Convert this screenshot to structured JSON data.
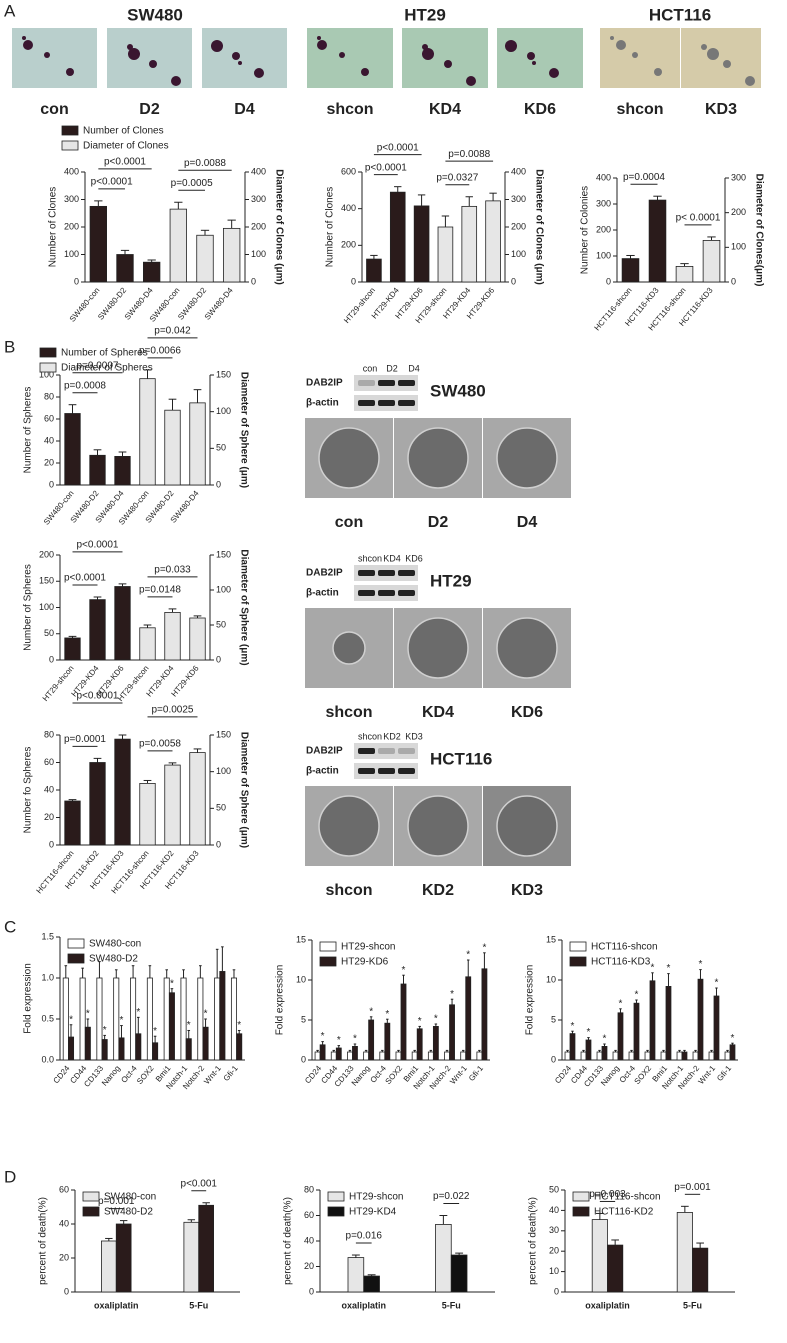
{
  "panel_labels": [
    "A",
    "B",
    "C",
    "D"
  ],
  "panel_a": {
    "groups": [
      {
        "title": "SW480",
        "images": [
          "con",
          "D2",
          "D4"
        ]
      },
      {
        "title": "HT29",
        "images": [
          "shcon",
          "KD4",
          "KD6"
        ]
      },
      {
        "title": "HCT116",
        "images": [
          "shcon",
          "KD3"
        ]
      }
    ]
  },
  "panel_b": {
    "blots": [
      {
        "cell_line": "SW480",
        "lanes": [
          "con",
          "D2",
          "D4"
        ],
        "proteins": [
          "DAB2IP",
          "β-actin"
        ],
        "images": [
          "con",
          "D2",
          "D4"
        ]
      },
      {
        "cell_line": "HT29",
        "lanes": [
          "shcon",
          "KD4",
          "KD6"
        ],
        "proteins": [
          "DAB2IP",
          "β-actin"
        ],
        "images": [
          "shcon",
          "KD4",
          "KD6"
        ]
      },
      {
        "cell_line": "HCT116",
        "lanes": [
          "shcon",
          "KD2",
          "KD3"
        ],
        "proteins": [
          "DAB2IP",
          "β-actin"
        ],
        "images": [
          "shcon",
          "KD2",
          "KD3"
        ]
      }
    ]
  },
  "chart_data": [
    {
      "type": "bar",
      "ylabel": "Number of Clones",
      "y2label": "Diameter of Clones (μm)",
      "legend": "upper left",
      "categories": [
        "SW480-con",
        "SW480-D2",
        "SW480-D4",
        "SW480-con",
        "SW480-D2",
        "SW480-D4"
      ],
      "ylim": [
        0,
        400
      ],
      "yticks": [
        0,
        100,
        200,
        300,
        400
      ],
      "y2lim": [
        0,
        400
      ],
      "y2ticks": [
        0,
        100,
        200,
        300,
        400
      ],
      "series": [
        {
          "name": "Number of Clones",
          "color": "#2a1b1b",
          "values": [
            275,
            100,
            72,
            null,
            null,
            null
          ],
          "errors": [
            20,
            15,
            8,
            null,
            null,
            null
          ]
        },
        {
          "name": "Diameter of Clones",
          "color": "#e6e6e6",
          "axis": "y2",
          "values": [
            null,
            null,
            null,
            265,
            170,
            195
          ],
          "errors": [
            null,
            null,
            null,
            25,
            18,
            30
          ]
        }
      ],
      "annotations": [
        "p<0.0001",
        "p<0.0001",
        "p=0.0088",
        "p=0.0005"
      ]
    },
    {
      "type": "bar",
      "ylabel": "Number of Clones",
      "y2label": "Diameter of Clones (μm)",
      "categories": [
        "HT29-shcon",
        "HT29-KD4",
        "HT29-KD6",
        "HT29-shcon",
        "HT29-KD4",
        "HT29-KD6"
      ],
      "ylim": [
        0,
        600
      ],
      "yticks": [
        0,
        200,
        400,
        600
      ],
      "y2lim": [
        0,
        400
      ],
      "y2ticks": [
        0,
        100,
        200,
        300,
        400
      ],
      "series": [
        {
          "color": "#2a1b1b",
          "values": [
            125,
            490,
            415,
            null,
            null,
            null
          ],
          "errors": [
            20,
            30,
            60,
            null,
            null,
            null
          ]
        },
        {
          "color": "#e6e6e6",
          "axis": "y2",
          "values": [
            null,
            null,
            null,
            200,
            275,
            295
          ],
          "errors": [
            null,
            null,
            null,
            40,
            35,
            28
          ]
        }
      ],
      "annotations": [
        "p<0.0001",
        "p<0.0001",
        "p=0.0088",
        "p=0.0327"
      ]
    },
    {
      "type": "bar",
      "ylabel": "Number of Colonies",
      "y2label": "Diameter of Clones(μm)",
      "categories": [
        "HCT116-shcon",
        "HCT116-KD3",
        "HCT116-shcon",
        "HCT116-KD3"
      ],
      "ylim": [
        0,
        400
      ],
      "yticks": [
        0,
        100,
        200,
        300,
        400
      ],
      "y2lim": [
        0,
        300
      ],
      "y2ticks": [
        0,
        100,
        200,
        300
      ],
      "series": [
        {
          "color": "#2a1b1b",
          "values": [
            90,
            315,
            null,
            null
          ],
          "errors": [
            12,
            15,
            null,
            null
          ]
        },
        {
          "color": "#e6e6e6",
          "axis": "y2",
          "values": [
            null,
            null,
            45,
            120
          ],
          "errors": [
            null,
            null,
            8,
            10
          ]
        }
      ],
      "annotations": [
        "p=0.0004",
        "p< 0.0001"
      ]
    },
    {
      "type": "bar",
      "ylabel": "Number of Spheres",
      "y2label": "Diameter of Sphere (μm)",
      "legend": "upper left",
      "categories": [
        "SW480-con",
        "SW480-D2",
        "SW480-D4",
        "SW480-con",
        "SW480-D2",
        "SW480-D4"
      ],
      "ylim": [
        0,
        100
      ],
      "yticks": [
        0,
        20,
        40,
        60,
        80,
        100
      ],
      "y2lim": [
        0,
        150
      ],
      "y2ticks": [
        0,
        50,
        100,
        150
      ],
      "series": [
        {
          "name": "Number of Spheres",
          "color": "#2a1b1b",
          "values": [
            65,
            27,
            26,
            null,
            null,
            null
          ],
          "errors": [
            8,
            5,
            4,
            null,
            null,
            null
          ]
        },
        {
          "name": "Diameter of Spheres",
          "color": "#e6e6e6",
          "axis": "y2",
          "values": [
            null,
            null,
            null,
            145,
            102,
            112
          ],
          "errors": [
            null,
            null,
            null,
            12,
            15,
            18
          ]
        }
      ],
      "annotations": [
        "p=0.0007",
        "p=0.0008",
        "p=0.042",
        "p=0.0066"
      ]
    },
    {
      "type": "bar",
      "ylabel": "Number of Spheres",
      "y2label": "Diameter of Sphere (μm)",
      "categories": [
        "HT29-shcon",
        "HT29-KD4",
        "HT29-KD6",
        "HT29-shcon",
        "HT29-KD4",
        "HT29-KD6"
      ],
      "ylim": [
        0,
        200
      ],
      "yticks": [
        0,
        50,
        100,
        150,
        200
      ],
      "y2lim": [
        0,
        150
      ],
      "y2ticks": [
        0,
        50,
        100,
        150
      ],
      "series": [
        {
          "color": "#2a1b1b",
          "values": [
            42,
            115,
            140,
            null,
            null,
            null
          ],
          "errors": [
            3,
            5,
            5,
            null,
            null,
            null
          ]
        },
        {
          "color": "#e6e6e6",
          "axis": "y2",
          "values": [
            null,
            null,
            null,
            46,
            68,
            60
          ],
          "errors": [
            null,
            null,
            null,
            4,
            5,
            3
          ]
        }
      ],
      "annotations": [
        "p<0.0001",
        "p<0.0001",
        "p=0.033",
        "p=0.0148"
      ]
    },
    {
      "type": "bar",
      "ylabel": "Number fo Spheres",
      "y2label": "Diameter of Sphere (μm)",
      "categories": [
        "HCT116-shcon",
        "HCT116-KD2",
        "HCT116-KD3",
        "HCT116-shcon",
        "HCT116-KD2",
        "HCT116-KD3"
      ],
      "ylim": [
        0,
        80
      ],
      "yticks": [
        0,
        20,
        40,
        60,
        80
      ],
      "y2lim": [
        0,
        150
      ],
      "y2ticks": [
        0,
        50,
        100,
        150
      ],
      "series": [
        {
          "color": "#2a1b1b",
          "values": [
            32,
            60,
            77,
            null,
            null,
            null
          ],
          "errors": [
            1,
            3,
            3,
            null,
            null,
            null
          ]
        },
        {
          "color": "#e6e6e6",
          "axis": "y2",
          "values": [
            null,
            null,
            null,
            84,
            109,
            126
          ],
          "errors": [
            null,
            null,
            null,
            4,
            3,
            5
          ]
        }
      ],
      "annotations": [
        "p<0.0001",
        "p=0.0001",
        "p=0.0025",
        "p=0.0058"
      ]
    },
    {
      "type": "bar",
      "ylabel": "Fold expression",
      "legend": "upper left",
      "categories": [
        "CD24",
        "CD44",
        "CD133",
        "Nanog",
        "Oct-4",
        "SOX2",
        "Bmi1",
        "Notch-1",
        "Notch-2",
        "Wnt-1",
        "Gfi-1"
      ],
      "ylim": [
        0,
        1.5
      ],
      "yticks": [
        {
          "value": 0,
          "label": "0.0"
        },
        0.5,
        {
          "value": 1,
          "label": "1.0"
        },
        1.5
      ],
      "series": [
        {
          "name": "SW480-con",
          "color": "#ffffff",
          "values": [
            1,
            1,
            1,
            1,
            1,
            1,
            1,
            1,
            1,
            1,
            1
          ],
          "errors": [
            0.15,
            0.12,
            0.2,
            0.1,
            0.15,
            0.15,
            0.1,
            0.1,
            0.15,
            0.35,
            0.1
          ]
        },
        {
          "name": "SW480-D2",
          "color": "#2a1b1b",
          "values": [
            0.28,
            0.4,
            0.25,
            0.27,
            0.32,
            0.21,
            0.82,
            0.26,
            0.4,
            1.08,
            0.32
          ],
          "errors": [
            0.15,
            0.1,
            0.05,
            0.15,
            0.2,
            0.08,
            0.05,
            0.1,
            0.1,
            0.3,
            0.04
          ],
          "significance": [
            "*",
            "*",
            "*",
            "*",
            "*",
            "*",
            "*",
            "*",
            "*",
            null,
            "*"
          ]
        }
      ]
    },
    {
      "type": "bar",
      "ylabel": "Fold expression",
      "legend": "upper left",
      "categories": [
        "CD24",
        "CD44",
        "CD133",
        "Nanog",
        "Oct-4",
        "SOX2",
        "Bmi1",
        "Notch-1",
        "Notch-2",
        "Wnt-1",
        "Gfi-1"
      ],
      "ylim": [
        0,
        15
      ],
      "yticks": [
        0,
        5,
        10,
        15
      ],
      "series": [
        {
          "name": "HT29-shcon",
          "color": "#ffffff",
          "values": [
            1,
            1,
            1,
            1,
            1,
            1,
            1,
            1,
            1,
            1,
            1
          ],
          "errors": [
            0.2,
            0.2,
            0.2,
            0.2,
            0.2,
            0.2,
            0.2,
            0.2,
            0.2,
            0.2,
            0.2
          ]
        },
        {
          "name": "HT29-KD6",
          "color": "#2a1b1b",
          "values": [
            1.9,
            1.5,
            1.7,
            5,
            4.6,
            9.5,
            3.9,
            4.2,
            6.9,
            10.4,
            11.4
          ],
          "errors": [
            0.4,
            0.3,
            0.3,
            0.4,
            0.5,
            1.1,
            0.3,
            0.3,
            0.7,
            2.1,
            2
          ],
          "significance": [
            "*",
            "*",
            "*",
            "*",
            "*",
            "*",
            "*",
            "*",
            "*",
            "*",
            "*"
          ]
        }
      ]
    },
    {
      "type": "bar",
      "ylabel": "Fold expression",
      "legend": "upper left",
      "categories": [
        "CD24",
        "CD44",
        "CD133",
        "Nanog",
        "Oct-4",
        "SOX2",
        "Bmi1",
        "Notch-1",
        "Notch-2",
        "Wnt-1",
        "Gfi-1"
      ],
      "ylim": [
        0,
        15
      ],
      "yticks": [
        0,
        5,
        10,
        15
      ],
      "series": [
        {
          "name": "HCT116-shcon",
          "color": "#ffffff",
          "values": [
            1,
            1,
            1,
            1,
            1,
            1,
            1,
            1,
            1,
            1,
            1
          ],
          "errors": [
            0.2,
            0.2,
            0.2,
            0.2,
            0.2,
            0.2,
            0.2,
            0.2,
            0.2,
            0.2,
            0.2
          ]
        },
        {
          "name": "HCT116-KD3",
          "color": "#2a1b1b",
          "values": [
            3.3,
            2.5,
            1.7,
            5.9,
            7.1,
            9.9,
            9.2,
            1,
            10.1,
            8,
            1.9
          ],
          "errors": [
            0.3,
            0.3,
            0.3,
            0.5,
            0.4,
            1,
            1.6,
            0.2,
            1.2,
            1,
            0.2
          ],
          "significance": [
            "*",
            "*",
            "*",
            "*",
            "*",
            "*",
            "*",
            null,
            "*",
            "*",
            "*"
          ]
        }
      ]
    },
    {
      "type": "bar",
      "ylabel": "percent of death(%)",
      "legend": "upper left",
      "categories": [
        "oxaliplatin",
        "5-Fu"
      ],
      "ylim": [
        0,
        60
      ],
      "yticks": [
        0,
        20,
        40,
        60
      ],
      "series": [
        {
          "name": "SW480-con",
          "color": "#e6e6e6",
          "values": [
            30,
            41
          ],
          "errors": [
            1.5,
            1.5
          ]
        },
        {
          "name": "SW480-D2",
          "color": "#2a1b1b",
          "values": [
            40,
            51
          ],
          "errors": [
            2,
            1.5
          ]
        }
      ],
      "annotations": [
        "p=0.001",
        "p<0.001"
      ]
    },
    {
      "type": "bar",
      "ylabel": "percent of death(%)",
      "legend": "upper left",
      "categories": [
        "oxaliplatin",
        "5-Fu"
      ],
      "ylim": [
        0,
        80
      ],
      "yticks": [
        0,
        20,
        40,
        60,
        80
      ],
      "series": [
        {
          "name": "HT29-shcon",
          "color": "#e6e6e6",
          "values": [
            27,
            53
          ],
          "errors": [
            2,
            7
          ]
        },
        {
          "name": "HT29-KD4",
          "color": "#111111",
          "values": [
            12.5,
            29
          ],
          "errors": [
            1,
            1.5
          ]
        }
      ],
      "annotations": [
        "p=0.016",
        "p=0.022"
      ]
    },
    {
      "type": "bar",
      "ylabel": "percent of death(%)",
      "legend": "upper left",
      "categories": [
        "oxaliplatin",
        "5-Fu"
      ],
      "ylim": [
        0,
        50
      ],
      "yticks": [
        0,
        10,
        20,
        30,
        40,
        50
      ],
      "series": [
        {
          "name": "HCT116-shcon",
          "color": "#e6e6e6",
          "values": [
            35.5,
            39
          ],
          "errors": [
            3,
            3
          ]
        },
        {
          "name": "HCT116-KD2",
          "color": "#2a1b1b",
          "values": [
            23,
            21.5
          ],
          "errors": [
            2.5,
            2.5
          ]
        }
      ],
      "annotations": [
        "p=0.003",
        "p=0.001"
      ]
    }
  ]
}
